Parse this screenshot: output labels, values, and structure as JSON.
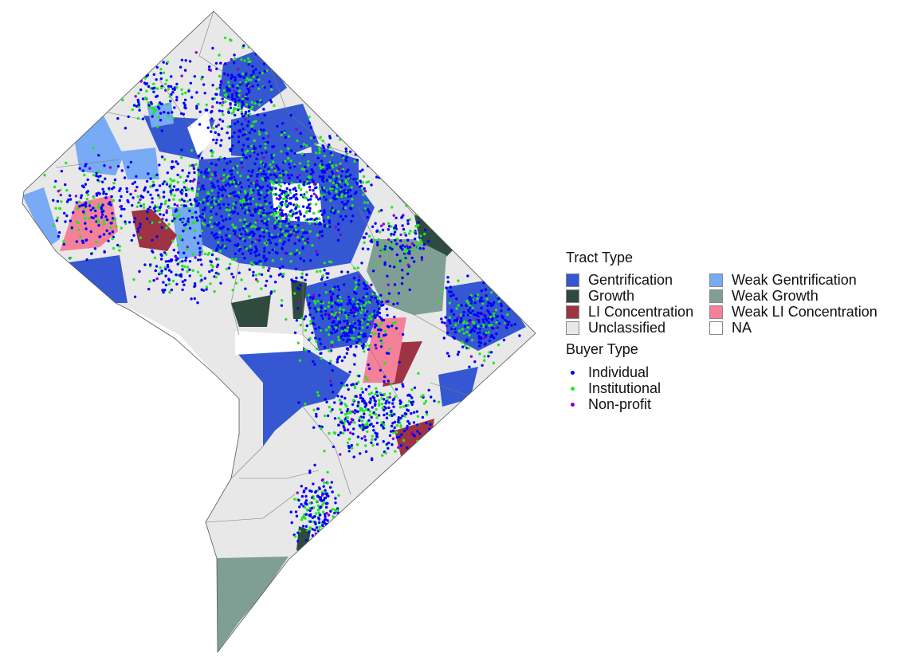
{
  "legend": {
    "tract_title": "Tract Type",
    "tract_types": [
      {
        "label": "Gentrification",
        "color": "#3557D1"
      },
      {
        "label": "Weak Gentrification",
        "color": "#78AAF5"
      },
      {
        "label": "Growth",
        "color": "#2F4A3E"
      },
      {
        "label": "Weak Growth",
        "color": "#7F9F94"
      },
      {
        "label": "LI Concentration",
        "color": "#9E3344"
      },
      {
        "label": "Weak LI Concentration",
        "color": "#F58199"
      },
      {
        "label": "Unclassified",
        "color": "#E8E8E8"
      },
      {
        "label": "NA",
        "color": "#FFFFFF"
      }
    ],
    "buyer_title": "Buyer Type",
    "buyer_types": [
      {
        "label": "Individual",
        "color": "#0000FF"
      },
      {
        "label": "Institutional",
        "color": "#22E622"
      },
      {
        "label": "Non-profit",
        "color": "#8800CC"
      }
    ]
  }
}
